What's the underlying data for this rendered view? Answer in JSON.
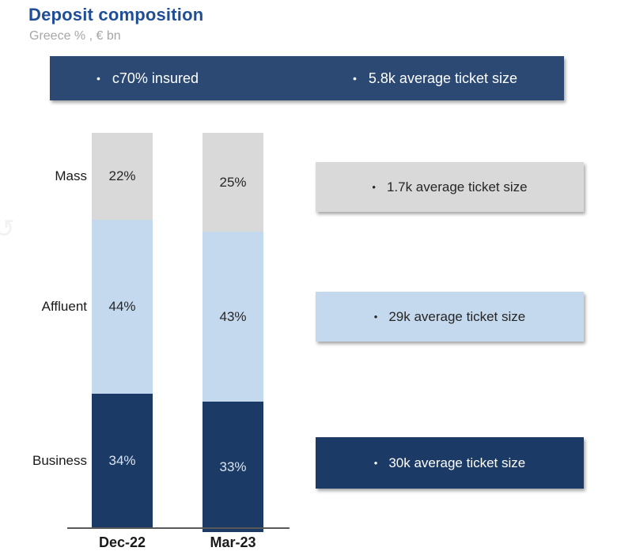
{
  "header": {
    "title": "Deposit composition",
    "subtitle": "Greece % , € bn"
  },
  "banner": {
    "items": [
      "c70% insured",
      "5.8k average ticket size"
    ]
  },
  "chart_data": {
    "type": "bar",
    "stacked": true,
    "title": "Deposit composition",
    "subtitle": "Greece % , € bn",
    "xlabel": "",
    "ylabel": "",
    "value_suffix": "%",
    "ylim": [
      0,
      100
    ],
    "grid": false,
    "legend_position": "row-labels-left",
    "categories": [
      "Dec-22",
      "Mar-23"
    ],
    "series": [
      {
        "name": "Mass",
        "values": [
          22,
          25
        ],
        "color": "#d9d9d9",
        "label_color": "#262626"
      },
      {
        "name": "Affluent",
        "values": [
          44,
          43
        ],
        "color": "#c5d9ee",
        "label_color": "#262626"
      },
      {
        "name": "Business",
        "values": [
          34,
          33
        ],
        "color": "#1b3a66",
        "label_color": "#dce4f0"
      }
    ]
  },
  "callouts": [
    {
      "text": "1.7k average ticket size",
      "bg": "#d9d9d9",
      "fg": "#262626",
      "bullet_color": "#262626"
    },
    {
      "text": "29k average ticket size",
      "bg": "#c5d9ee",
      "fg": "#262626",
      "bullet_color": "#262626"
    },
    {
      "text": "30k average ticket size",
      "bg": "#1b3a66",
      "fg": "#ffffff",
      "bullet_color": "#ffffff"
    }
  ],
  "colors": {
    "title_blue": "#1f4e96",
    "subtitle_gray": "#a6a6a6",
    "banner_navy": "#2b4973",
    "bar_gray": "#d9d9d9",
    "bar_light_blue": "#c5d9ee",
    "bar_navy": "#1b3a66",
    "axis_gray": "#595959"
  },
  "decor": {
    "refresh_glyph": "↺"
  }
}
